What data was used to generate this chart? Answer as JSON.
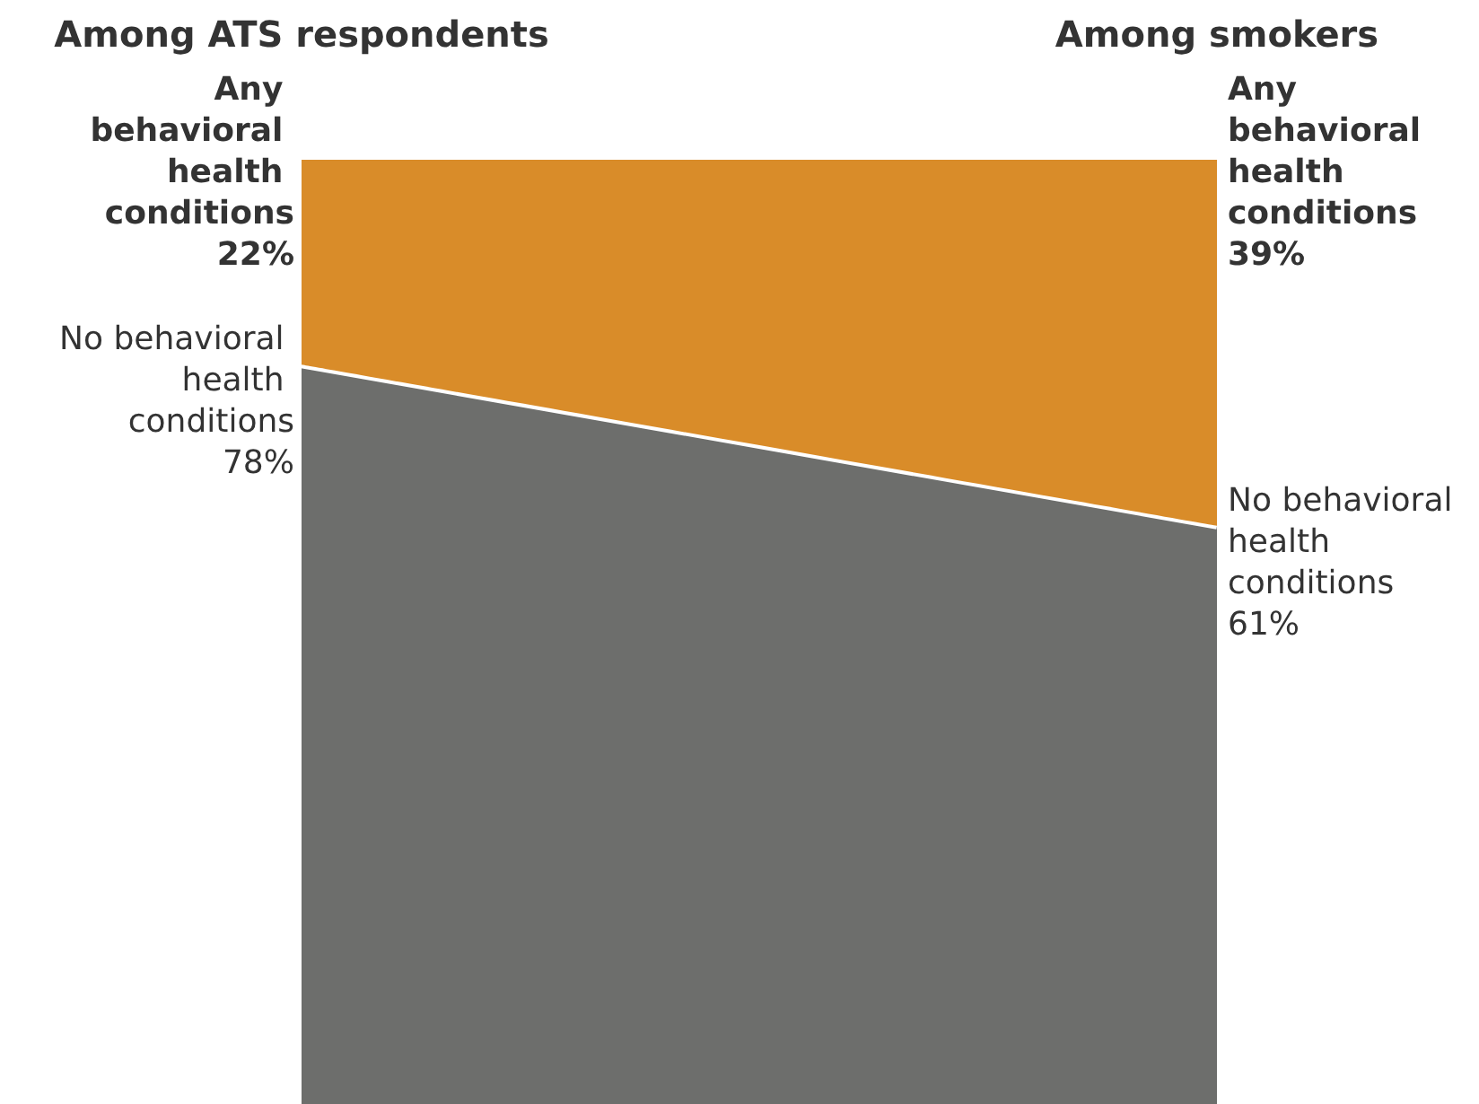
{
  "chart_data": {
    "type": "area",
    "stacked": true,
    "categories": [
      "Among ATS respondents",
      "Among smokers"
    ],
    "series": [
      {
        "name": "No behavioral health conditions",
        "color": "#6d6e6c",
        "values": [
          78,
          61
        ],
        "value_labels": [
          "78%",
          "61%"
        ]
      },
      {
        "name": "Any behavioral health conditions",
        "color": "#d98c29",
        "values": [
          22,
          39
        ],
        "value_labels": [
          "22%",
          "39%"
        ]
      }
    ]
  }
}
